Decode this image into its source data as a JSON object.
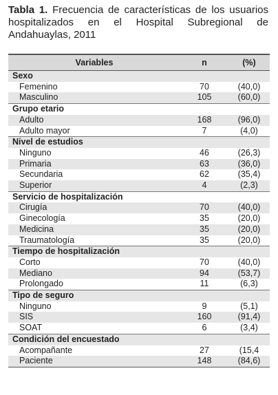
{
  "caption": {
    "label": "Tabla 1.",
    "text": "Frecuencia de características de los usuarios hospitalizados en el Hospital Subregional de Andahuaylas, 2011"
  },
  "table": {
    "header": [
      "Variables",
      "n",
      "(%)"
    ],
    "groups": [
      {
        "label": "Sexo",
        "rows": [
          [
            "Femenino",
            70,
            "(40,0)"
          ],
          [
            "Masculino",
            105,
            "(60,0)"
          ]
        ]
      },
      {
        "label": "Grupo etario",
        "rows": [
          [
            "Adulto",
            168,
            "(96,0)"
          ],
          [
            "Adulto mayor",
            7,
            "(4,0)"
          ]
        ]
      },
      {
        "label": "Nivel de estudios",
        "rows": [
          [
            "Ninguno",
            46,
            "(26,3)"
          ],
          [
            "Primaria",
            63,
            "(36,0)"
          ],
          [
            "Secundaria",
            62,
            "(35,4)"
          ],
          [
            "Superior",
            4,
            "(2,3)"
          ]
        ]
      },
      {
        "label": "Servicio de hospitalización",
        "rows": [
          [
            "Cirugía",
            70,
            "(40,0)"
          ],
          [
            "Ginecología",
            35,
            "(20,0)"
          ],
          [
            "Medicina",
            35,
            "(20,0)"
          ],
          [
            "Traumatología",
            35,
            "(20,0)"
          ]
        ]
      },
      {
        "label": "Tiempo de hospitalización",
        "rows": [
          [
            "Corto",
            70,
            "(40,0)"
          ],
          [
            "Mediano",
            94,
            "(53,7)"
          ],
          [
            "Prolongado",
            11,
            "(6,3)"
          ]
        ]
      },
      {
        "label": "Tipo de seguro",
        "rows": [
          [
            "Ninguno",
            9,
            "(5,1)"
          ],
          [
            "SIS",
            160,
            "(91,4)"
          ],
          [
            "SOAT",
            6,
            "(3,4)"
          ]
        ]
      },
      {
        "label": "Condición del encuestado",
        "rows": [
          [
            "Acompañante",
            27,
            "(15,4"
          ],
          [
            "Paciente",
            148,
            "(84,6)"
          ]
        ]
      }
    ]
  }
}
